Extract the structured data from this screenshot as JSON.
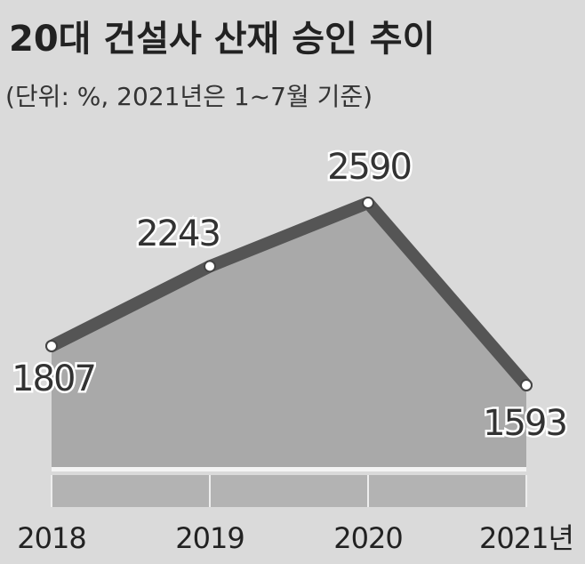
{
  "chart_data": {
    "type": "area",
    "title": "20대 건설사 산재 승인 추이",
    "subtitle": "(단위: %, 2021년은 1~7월 기준)",
    "categories": [
      "2018",
      "2019",
      "2020",
      "2021년"
    ],
    "values": [
      1807,
      2243,
      2590,
      1593
    ],
    "color": "#555555",
    "area_color": "#a9a9a9"
  }
}
